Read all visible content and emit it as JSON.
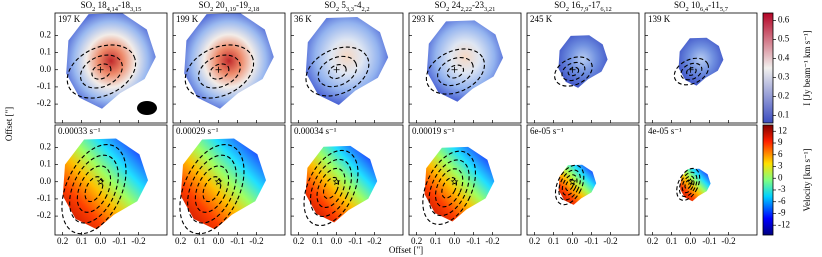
{
  "chart_data": {
    "type": "map-grid",
    "panels": [
      {
        "title": [
          {
            "text": "SO"
          },
          {
            "text": "2",
            "sub": true
          },
          {
            "text": " 18"
          },
          {
            "text": "4,14",
            "sub": true
          },
          {
            "text": "-18"
          },
          {
            "text": "3,15",
            "sub": true
          }
        ],
        "temperature": "197 K",
        "rate": "0.00033 s⁻¹"
      },
      {
        "title": [
          {
            "text": "SO"
          },
          {
            "text": "2",
            "sub": true
          },
          {
            "text": " 20"
          },
          {
            "text": "1,19",
            "sub": true
          },
          {
            "text": "-19"
          },
          {
            "text": "2,18",
            "sub": true
          }
        ],
        "temperature": "199 K",
        "rate": "0.00029 s⁻¹"
      },
      {
        "title": [
          {
            "text": "SO"
          },
          {
            "text": "2",
            "sub": true
          },
          {
            "text": " 5"
          },
          {
            "text": "3,3",
            "sub": true
          },
          {
            "text": "-4"
          },
          {
            "text": "2,2",
            "sub": true
          }
        ],
        "temperature": "36 K",
        "rate": "0.00034 s⁻¹"
      },
      {
        "title": [
          {
            "text": "SO"
          },
          {
            "text": "2",
            "sub": true
          },
          {
            "text": " 24"
          },
          {
            "text": "2,22",
            "sub": true
          },
          {
            "text": "-23"
          },
          {
            "text": "3,21",
            "sub": true
          }
        ],
        "temperature": "293 K",
        "rate": "0.00019 s⁻¹"
      },
      {
        "title": [
          {
            "text": "SO"
          },
          {
            "text": "2",
            "sub": true
          },
          {
            "text": " 16"
          },
          {
            "text": "7,9",
            "sub": true
          },
          {
            "text": "-17"
          },
          {
            "text": "6,12",
            "sub": true
          }
        ],
        "temperature": "245 K",
        "rate": "6e-05 s⁻¹"
      },
      {
        "title": [
          {
            "text": "SO"
          },
          {
            "text": "2",
            "sub": true
          },
          {
            "text": " 10"
          },
          {
            "text": "6,4",
            "sub": true
          },
          {
            "text": "-11"
          },
          {
            "text": "5,7",
            "sub": true
          }
        ],
        "temperature": "139 K",
        "rate": "4e-05 s⁻¹"
      }
    ],
    "x_label": "Offset [\"]",
    "y_label": "Offset [\"]",
    "xlim": [
      0.24,
      -0.35
    ],
    "xticks": [
      0.2,
      0.1,
      {
        "value": 0,
        "label": "0.0"
      },
      -0.1,
      -0.2
    ],
    "ylim": [
      -0.31,
      0.33
    ],
    "yticks": [
      0.2,
      0.1,
      {
        "value": 0,
        "label": "0.0"
      },
      -0.1,
      -0.2
    ],
    "colorbars": [
      {
        "label": "I [Jy beam⁻¹ km s⁻¹]",
        "lim": [
          0.06,
          0.64
        ],
        "ticks": [
          0.1,
          0.2,
          0.3,
          0.4,
          0.5,
          0.6
        ]
      },
      {
        "label": "Velocity [km s⁻¹]",
        "lim": [
          -14.5,
          13.6
        ],
        "ticks": [
          12,
          9,
          6,
          3,
          0,
          -3,
          -6,
          -9,
          -12
        ]
      }
    ]
  }
}
